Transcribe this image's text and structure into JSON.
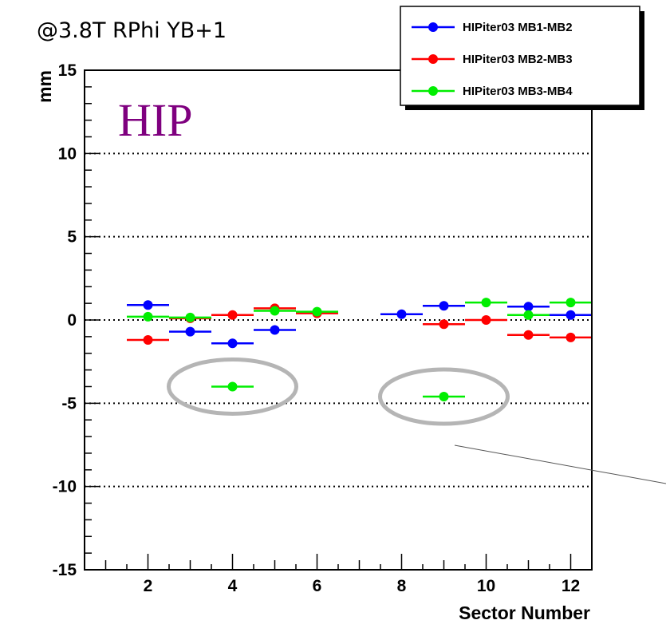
{
  "chart_data": {
    "type": "scatter",
    "title": "@3.8T RPhi YB+1",
    "xlabel": "Sector Number",
    "ylabel": "mm",
    "xlim": [
      0.5,
      12.5
    ],
    "ylim": [
      -15,
      15
    ],
    "xticks": [
      2,
      4,
      6,
      8,
      10,
      12
    ],
    "yticks": [
      -15,
      -10,
      -5,
      0,
      5,
      10,
      15
    ],
    "grid": "horizontal dotted at -10, -5, 0, 5, 10",
    "legend_position": "top-right",
    "annotation": {
      "text": "HIP",
      "color": "#7f007f"
    },
    "highlight_color": "#b5b5b5",
    "highlights": [
      {
        "x": 4,
        "y": -4.0
      },
      {
        "x": 9,
        "y": -4.6
      }
    ],
    "series": [
      {
        "name": "HIPiter03 MB1-MB2",
        "color": "#0000ff",
        "points": [
          {
            "x": 2,
            "y": 0.9
          },
          {
            "x": 3,
            "y": -0.7
          },
          {
            "x": 4,
            "y": -1.4
          },
          {
            "x": 5,
            "y": -0.6
          },
          {
            "x": 8,
            "y": 0.35
          },
          {
            "x": 9,
            "y": 0.85
          },
          {
            "x": 11,
            "y": 0.8
          },
          {
            "x": 12,
            "y": 0.3
          }
        ]
      },
      {
        "name": "HIPiter03 MB2-MB3",
        "color": "#ff0000",
        "points": [
          {
            "x": 2,
            "y": -1.2
          },
          {
            "x": 3,
            "y": 0.1
          },
          {
            "x": 4,
            "y": 0.3
          },
          {
            "x": 5,
            "y": 0.7
          },
          {
            "x": 6,
            "y": 0.4
          },
          {
            "x": 9,
            "y": -0.25
          },
          {
            "x": 10,
            "y": 0.0
          },
          {
            "x": 11,
            "y": -0.9
          },
          {
            "x": 12,
            "y": -1.05
          }
        ]
      },
      {
        "name": "HIPiter03 MB3-MB4",
        "color": "#00ee00",
        "points": [
          {
            "x": 2,
            "y": 0.2
          },
          {
            "x": 3,
            "y": 0.15
          },
          {
            "x": 4,
            "y": -4.0
          },
          {
            "x": 5,
            "y": 0.55
          },
          {
            "x": 6,
            "y": 0.5
          },
          {
            "x": 9,
            "y": -4.6
          },
          {
            "x": 10,
            "y": 1.05
          },
          {
            "x": 11,
            "y": 0.3
          },
          {
            "x": 12,
            "y": 1.05
          }
        ]
      }
    ]
  }
}
